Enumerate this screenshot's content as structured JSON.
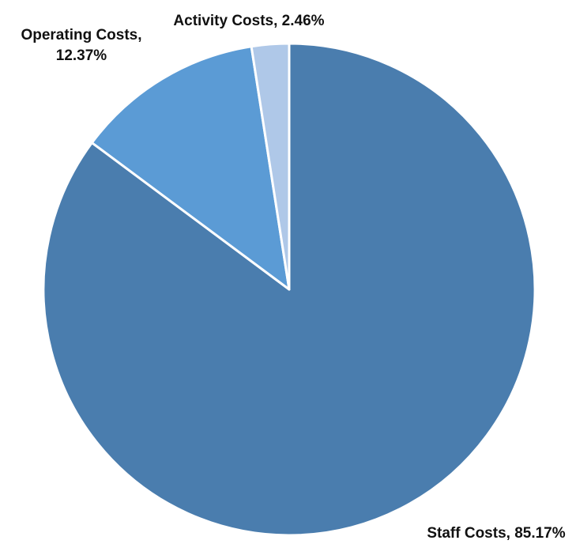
{
  "chart_data": {
    "type": "pie",
    "title": "",
    "start_angle_deg": 0,
    "direction": "clockwise",
    "slices": [
      {
        "name": "Staff Costs",
        "value": 85.17,
        "label_lines": [
          "Staff Costs, 85.17%"
        ],
        "color": "#4A7DAE"
      },
      {
        "name": "Operating Costs",
        "value": 12.37,
        "label_lines": [
          "Operating Costs,",
          "12.37%"
        ],
        "color": "#5B9BD5"
      },
      {
        "name": "Activity Costs",
        "value": 2.46,
        "label_lines": [
          "Activity Costs, 2.46%"
        ],
        "color": "#AFC8E8"
      }
    ],
    "slice_border_color": "#FFFFFF",
    "legend": "none"
  }
}
